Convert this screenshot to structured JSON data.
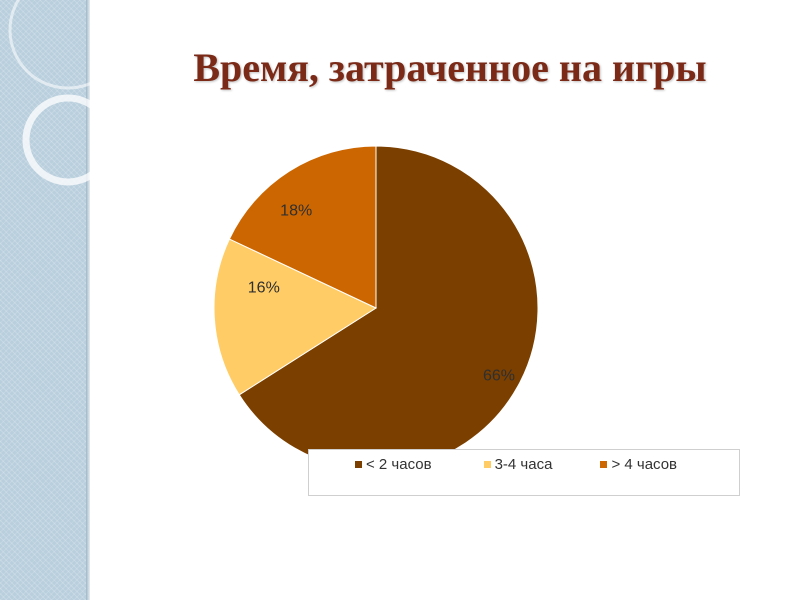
{
  "slide": {
    "title": "Время, затраченное на игры"
  },
  "chart_data": {
    "type": "pie",
    "categories": [
      "<  2 часов",
      "3-4 часа",
      ">  4 часов"
    ],
    "values": [
      66,
      16,
      18
    ],
    "labels": [
      "66%",
      "16%",
      "18%"
    ],
    "colors": [
      "#7b3f00",
      "#ffcc66",
      "#cc6600"
    ],
    "legend": {
      "placement": "bottom",
      "entries": [
        "<  2 часов",
        "3-4 часа",
        ">  4 часов"
      ]
    }
  }
}
